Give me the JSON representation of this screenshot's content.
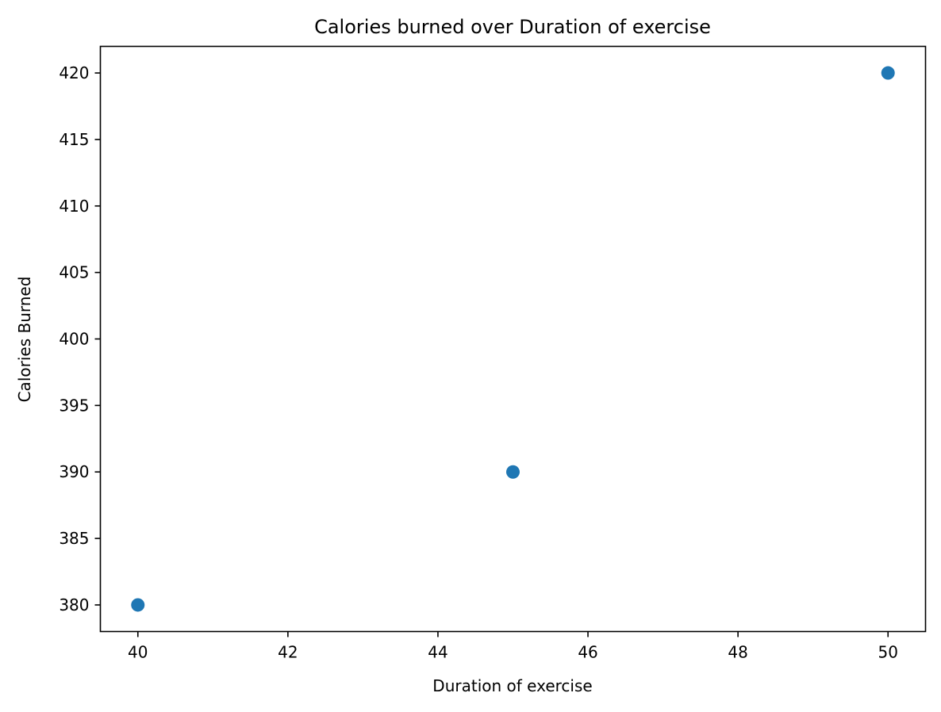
{
  "chart_data": {
    "type": "scatter",
    "title": "Calories burned over Duration of exercise",
    "xlabel": "Duration of exercise",
    "ylabel": "Calories Burned",
    "x": [
      40,
      45,
      50
    ],
    "y": [
      380,
      390,
      420
    ],
    "xlim": [
      39.5,
      50.5
    ],
    "ylim": [
      378,
      422
    ],
    "xticks": [
      40,
      42,
      44,
      46,
      48,
      50
    ],
    "yticks": [
      380,
      385,
      390,
      395,
      400,
      405,
      410,
      415,
      420
    ],
    "grid": false,
    "marker_color": "#1f77b4"
  }
}
